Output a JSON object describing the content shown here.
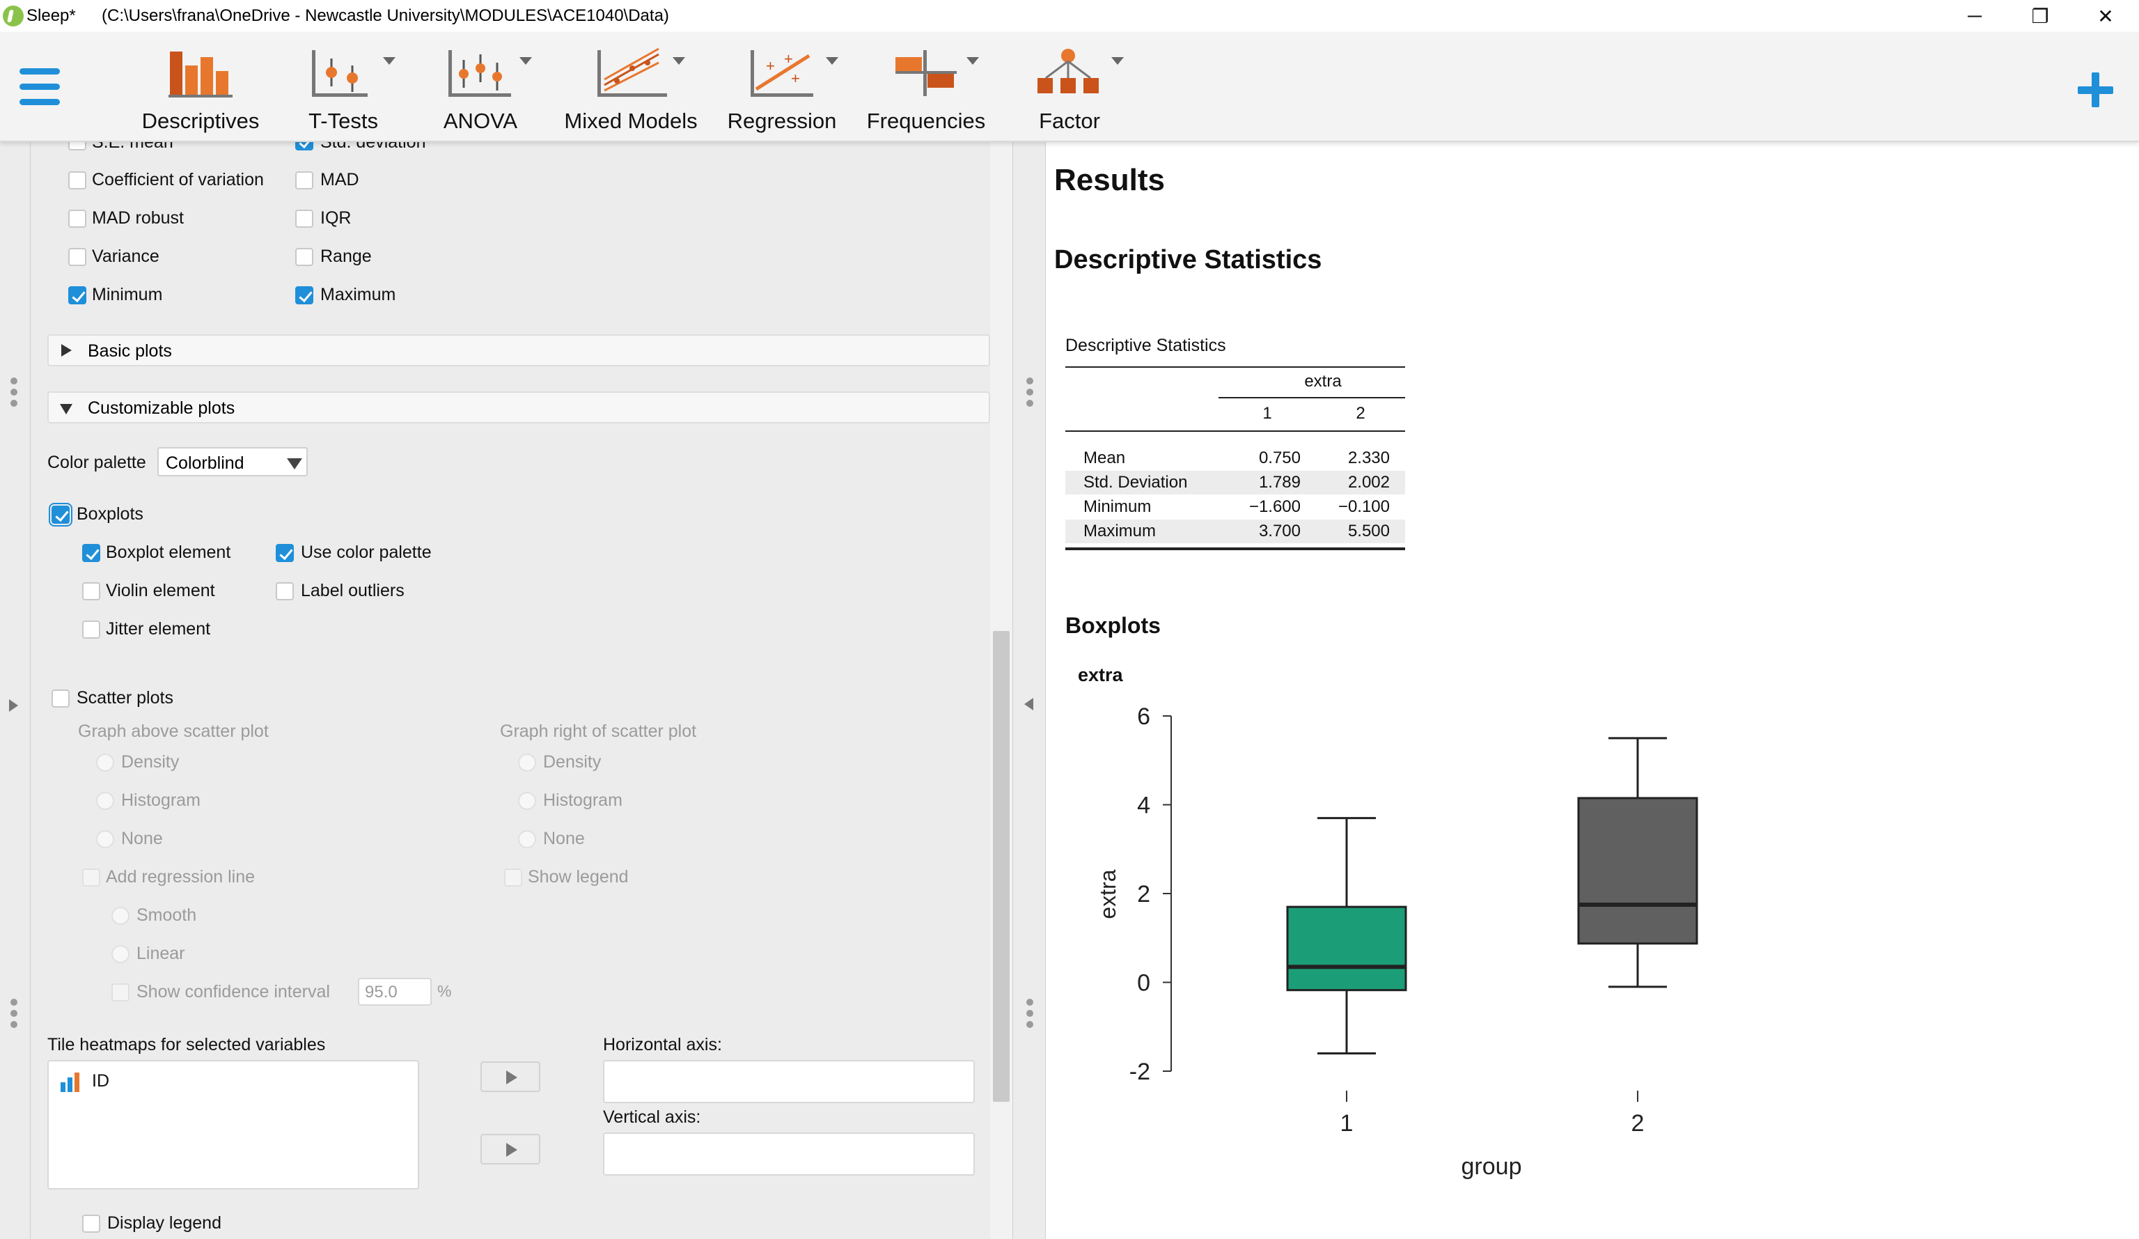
{
  "window": {
    "app_name": "Sleep*",
    "path": "(C:\\Users\\frana\\OneDrive - Newcastle University\\MODULES\\ACE1040\\Data)",
    "minimize_glyph": "─",
    "maximize_glyph": "❐",
    "close_glyph": "✕"
  },
  "ribbon": {
    "tools": [
      {
        "label": "Descriptives",
        "icon": "descriptives-icon"
      },
      {
        "label": "T-Tests",
        "icon": "t-tests-icon"
      },
      {
        "label": "ANOVA",
        "icon": "anova-icon"
      },
      {
        "label": "Mixed Models",
        "icon": "mixed-models-icon"
      },
      {
        "label": "Regression",
        "icon": "regression-icon"
      },
      {
        "label": "Frequencies",
        "icon": "frequencies-icon"
      },
      {
        "label": "Factor",
        "icon": "factor-icon"
      }
    ],
    "colors": {
      "accent": "#1f8fd9",
      "icon_orange": "#e8772e",
      "icon_dark_orange": "#c9531a"
    }
  },
  "options": {
    "partial_top_left": "S.E. mean",
    "partial_top_right": "Std. deviation",
    "stats_left": [
      {
        "label": "Coefficient of variation",
        "checked": false
      },
      {
        "label": "MAD robust",
        "checked": false
      },
      {
        "label": "Variance",
        "checked": false
      },
      {
        "label": "Minimum",
        "checked": true
      }
    ],
    "stats_right": [
      {
        "label": "MAD",
        "checked": false
      },
      {
        "label": "IQR",
        "checked": false
      },
      {
        "label": "Range",
        "checked": false
      },
      {
        "label": "Maximum",
        "checked": true
      }
    ],
    "basic_plots": "Basic plots",
    "customizable_plots": "Customizable plots",
    "color_palette_label": "Color palette",
    "color_palette_value": "Colorblind",
    "boxplots": {
      "label": "Boxplots",
      "checked": true
    },
    "boxplot_element": {
      "label": "Boxplot element",
      "checked": true
    },
    "use_color_palette": {
      "label": "Use color palette",
      "checked": true
    },
    "violin_element": {
      "label": "Violin element",
      "checked": false
    },
    "label_outliers": {
      "label": "Label outliers",
      "checked": false
    },
    "jitter_element": {
      "label": "Jitter element",
      "checked": false
    },
    "scatter_plots": {
      "label": "Scatter plots",
      "checked": false
    },
    "graph_above": "Graph above scatter plot",
    "graph_right": "Graph right of scatter plot",
    "above_options": [
      "Density",
      "Histogram",
      "None"
    ],
    "right_options": [
      "Density",
      "Histogram",
      "None"
    ],
    "add_regression_line": "Add regression line",
    "show_legend": "Show legend",
    "smooth": "Smooth",
    "linear": "Linear",
    "show_confidence_interval": "Show confidence interval",
    "ci_value": "95.0",
    "ci_unit": "%",
    "tile_heatmaps_label": "Tile heatmaps for selected variables",
    "variables": [
      "ID"
    ],
    "horizontal_axis_label": "Horizontal axis:",
    "vertical_axis_label": "Vertical axis:",
    "display_legend": {
      "label": "Display legend",
      "checked": false
    }
  },
  "results": {
    "heading": "Results",
    "section_title": "Descriptive Statistics",
    "table": {
      "caption": "Descriptive Statistics",
      "variable": "extra",
      "columns": [
        "1",
        "2"
      ],
      "rows": [
        {
          "label": "Mean",
          "values": [
            "0.750",
            "2.330"
          ]
        },
        {
          "label": "Std. Deviation",
          "values": [
            "1.789",
            "2.002"
          ]
        },
        {
          "label": "Minimum",
          "values": [
            "−1.600",
            "−0.100"
          ]
        },
        {
          "label": "Maximum",
          "values": [
            "3.700",
            "5.500"
          ]
        }
      ]
    },
    "boxplots_title": "Boxplots",
    "plot_title": "extra"
  },
  "chart_data": {
    "type": "box",
    "title": "extra",
    "xlabel": "group",
    "ylabel": "extra",
    "categories": [
      "1",
      "2"
    ],
    "ylim": [
      -2,
      6
    ],
    "yticks": [
      -2,
      0,
      2,
      4,
      6
    ],
    "ytick_labels": [
      "-2",
      "0",
      "2",
      "4",
      "6"
    ],
    "boxes": [
      {
        "name": "1",
        "whisker_low": -1.6,
        "q1": -0.175,
        "median": 0.35,
        "q3": 1.7,
        "whisker_high": 3.7,
        "color": "#1b9e77"
      },
      {
        "name": "2",
        "whisker_low": -0.1,
        "q1": 0.875,
        "median": 1.75,
        "q3": 4.15,
        "whisker_high": 5.5,
        "color": "#606060"
      }
    ],
    "grid": false
  }
}
